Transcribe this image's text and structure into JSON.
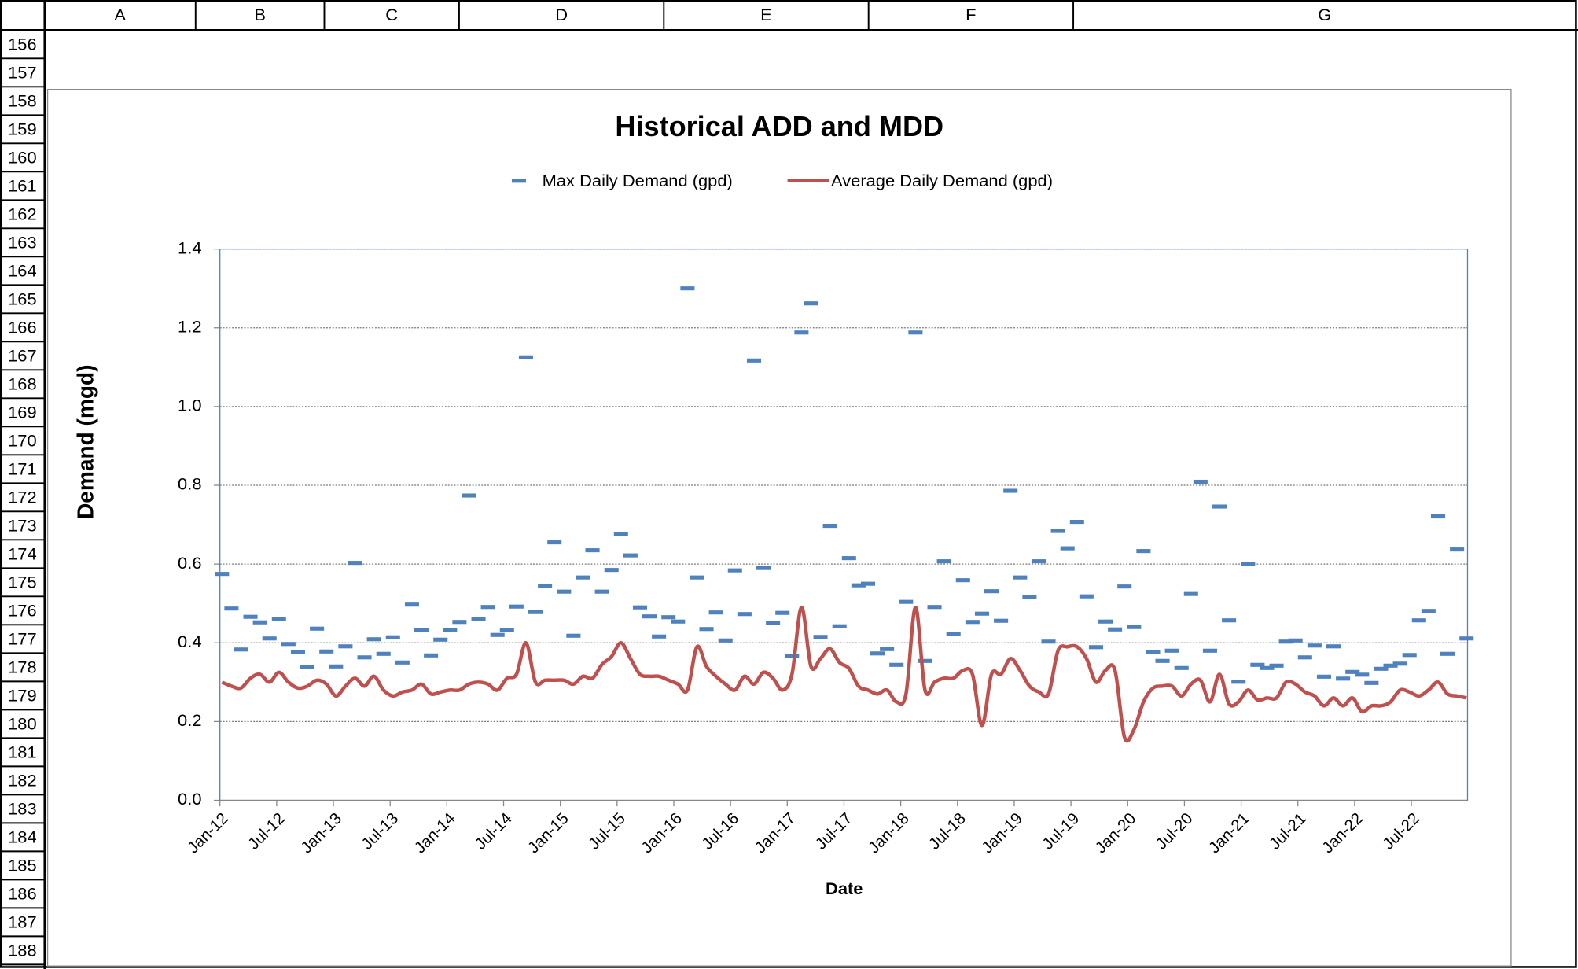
{
  "sheet": {
    "columns": [
      "A",
      "B",
      "C",
      "D",
      "E",
      "F",
      "G"
    ],
    "rows": [
      156,
      157,
      158,
      159,
      160,
      161,
      162,
      163,
      164,
      165,
      166,
      167,
      168,
      169,
      170,
      171,
      172,
      173,
      174,
      175,
      176,
      177,
      178,
      179,
      180,
      181,
      182,
      183,
      184,
      185,
      186,
      187,
      188
    ]
  },
  "chart_data": {
    "type": "line",
    "title": "Historical ADD and MDD",
    "x_label": "Date",
    "y_label": "Demand (mgd)",
    "categories": [
      "Jan-12",
      null,
      null,
      null,
      null,
      null,
      "Jul-12",
      null,
      null,
      null,
      null,
      null,
      "Jan-13",
      null,
      null,
      null,
      null,
      null,
      "Jul-13",
      null,
      null,
      null,
      null,
      null,
      "Jan-14",
      null,
      null,
      null,
      null,
      null,
      "Jul-14",
      null,
      null,
      null,
      null,
      null,
      "Jan-15",
      null,
      null,
      null,
      null,
      null,
      "Jul-15",
      null,
      null,
      null,
      null,
      null,
      "Jan-16",
      null,
      null,
      null,
      null,
      null,
      "Jul-16",
      null,
      null,
      null,
      null,
      null,
      "Jan-17",
      null,
      null,
      null,
      null,
      null,
      "Jul-17",
      null,
      null,
      null,
      null,
      null,
      "Jan-18",
      null,
      null,
      null,
      null,
      null,
      "Jul-18",
      null,
      null,
      null,
      null,
      null,
      "Jan-19",
      null,
      null,
      null,
      null,
      null,
      "Jul-19",
      null,
      null,
      null,
      null,
      null,
      "Jan-20",
      null,
      null,
      null,
      null,
      null,
      "Jul-20",
      null,
      null,
      null,
      null,
      null,
      "Jan-21",
      null,
      null,
      null,
      null,
      null,
      "Jul-21",
      null,
      null,
      null,
      null,
      null,
      "Jan-22",
      null,
      null,
      null,
      null,
      null,
      "Jul-22",
      null,
      null,
      null,
      null,
      null
    ],
    "series": [
      {
        "name": "Max Daily Demand (gpd)",
        "style": "dash-marker",
        "color": "#4f81bd",
        "values": [
          0.575,
          0.487,
          0.383,
          0.466,
          0.452,
          0.411,
          0.46,
          0.397,
          0.377,
          0.338,
          0.436,
          0.378,
          0.34,
          0.391,
          0.603,
          0.363,
          0.409,
          0.372,
          0.414,
          0.35,
          0.497,
          0.432,
          0.368,
          0.408,
          0.432,
          0.453,
          0.774,
          0.461,
          0.491,
          0.42,
          0.433,
          0.492,
          1.125,
          0.478,
          0.545,
          0.655,
          0.53,
          0.418,
          0.566,
          0.635,
          0.53,
          0.585,
          0.676,
          0.622,
          0.49,
          0.467,
          0.416,
          0.465,
          0.454,
          1.3,
          0.566,
          0.435,
          0.477,
          0.406,
          0.584,
          0.473,
          1.117,
          0.59,
          0.451,
          0.476,
          0.367,
          1.188,
          1.262,
          0.415,
          0.697,
          0.442,
          0.615,
          0.546,
          0.55,
          0.373,
          0.384,
          0.344,
          0.504,
          1.188,
          0.354,
          0.491,
          0.607,
          0.423,
          0.559,
          0.453,
          0.474,
          0.531,
          0.456,
          0.786,
          0.566,
          0.517,
          0.607,
          0.403,
          0.684,
          0.64,
          0.707,
          0.518,
          0.389,
          0.454,
          0.434,
          0.543,
          0.44,
          0.633,
          0.377,
          0.354,
          0.38,
          0.336,
          0.524,
          0.809,
          0.38,
          0.746,
          0.457,
          0.301,
          0.6,
          0.344,
          0.336,
          0.342,
          0.403,
          0.406,
          0.363,
          0.393,
          0.314,
          0.391,
          0.309,
          0.326,
          0.319,
          0.298,
          0.334,
          0.342,
          0.347,
          0.369,
          0.457,
          0.481,
          0.721,
          0.372,
          0.637,
          0.411
        ]
      },
      {
        "name": "Average Daily Demand (gpd)",
        "style": "line",
        "color": "#c0504d",
        "values": [
          0.3,
          0.29,
          0.285,
          0.31,
          0.32,
          0.3,
          0.325,
          0.3,
          0.285,
          0.29,
          0.305,
          0.295,
          0.265,
          0.29,
          0.31,
          0.29,
          0.315,
          0.28,
          0.265,
          0.275,
          0.28,
          0.295,
          0.27,
          0.275,
          0.28,
          0.28,
          0.295,
          0.3,
          0.295,
          0.28,
          0.31,
          0.32,
          0.4,
          0.3,
          0.305,
          0.305,
          0.305,
          0.295,
          0.315,
          0.31,
          0.345,
          0.365,
          0.4,
          0.36,
          0.32,
          0.315,
          0.315,
          0.305,
          0.295,
          0.28,
          0.39,
          0.34,
          0.315,
          0.295,
          0.28,
          0.315,
          0.295,
          0.325,
          0.31,
          0.28,
          0.32,
          0.49,
          0.34,
          0.36,
          0.385,
          0.35,
          0.335,
          0.29,
          0.28,
          0.27,
          0.28,
          0.25,
          0.27,
          0.49,
          0.28,
          0.3,
          0.31,
          0.31,
          0.33,
          0.32,
          0.19,
          0.32,
          0.32,
          0.36,
          0.33,
          0.29,
          0.275,
          0.27,
          0.38,
          0.39,
          0.39,
          0.36,
          0.3,
          0.33,
          0.33,
          0.16,
          0.18,
          0.25,
          0.285,
          0.29,
          0.29,
          0.265,
          0.295,
          0.305,
          0.25,
          0.32,
          0.245,
          0.25,
          0.28,
          0.255,
          0.26,
          0.26,
          0.3,
          0.295,
          0.275,
          0.265,
          0.24,
          0.26,
          0.24,
          0.26,
          0.225,
          0.24,
          0.24,
          0.25,
          0.28,
          0.275,
          0.265,
          0.28,
          0.3,
          0.27,
          0.265,
          0.26
        ]
      }
    ],
    "ylim": [
      0,
      1.4
    ],
    "yticks": [
      {
        "value": 0,
        "label": "0.0"
      },
      0.2,
      0.4,
      0.6,
      0.8,
      {
        "value": 1,
        "label": "1.0"
      },
      1.2,
      1.4
    ],
    "grid": true,
    "legend": "top"
  }
}
